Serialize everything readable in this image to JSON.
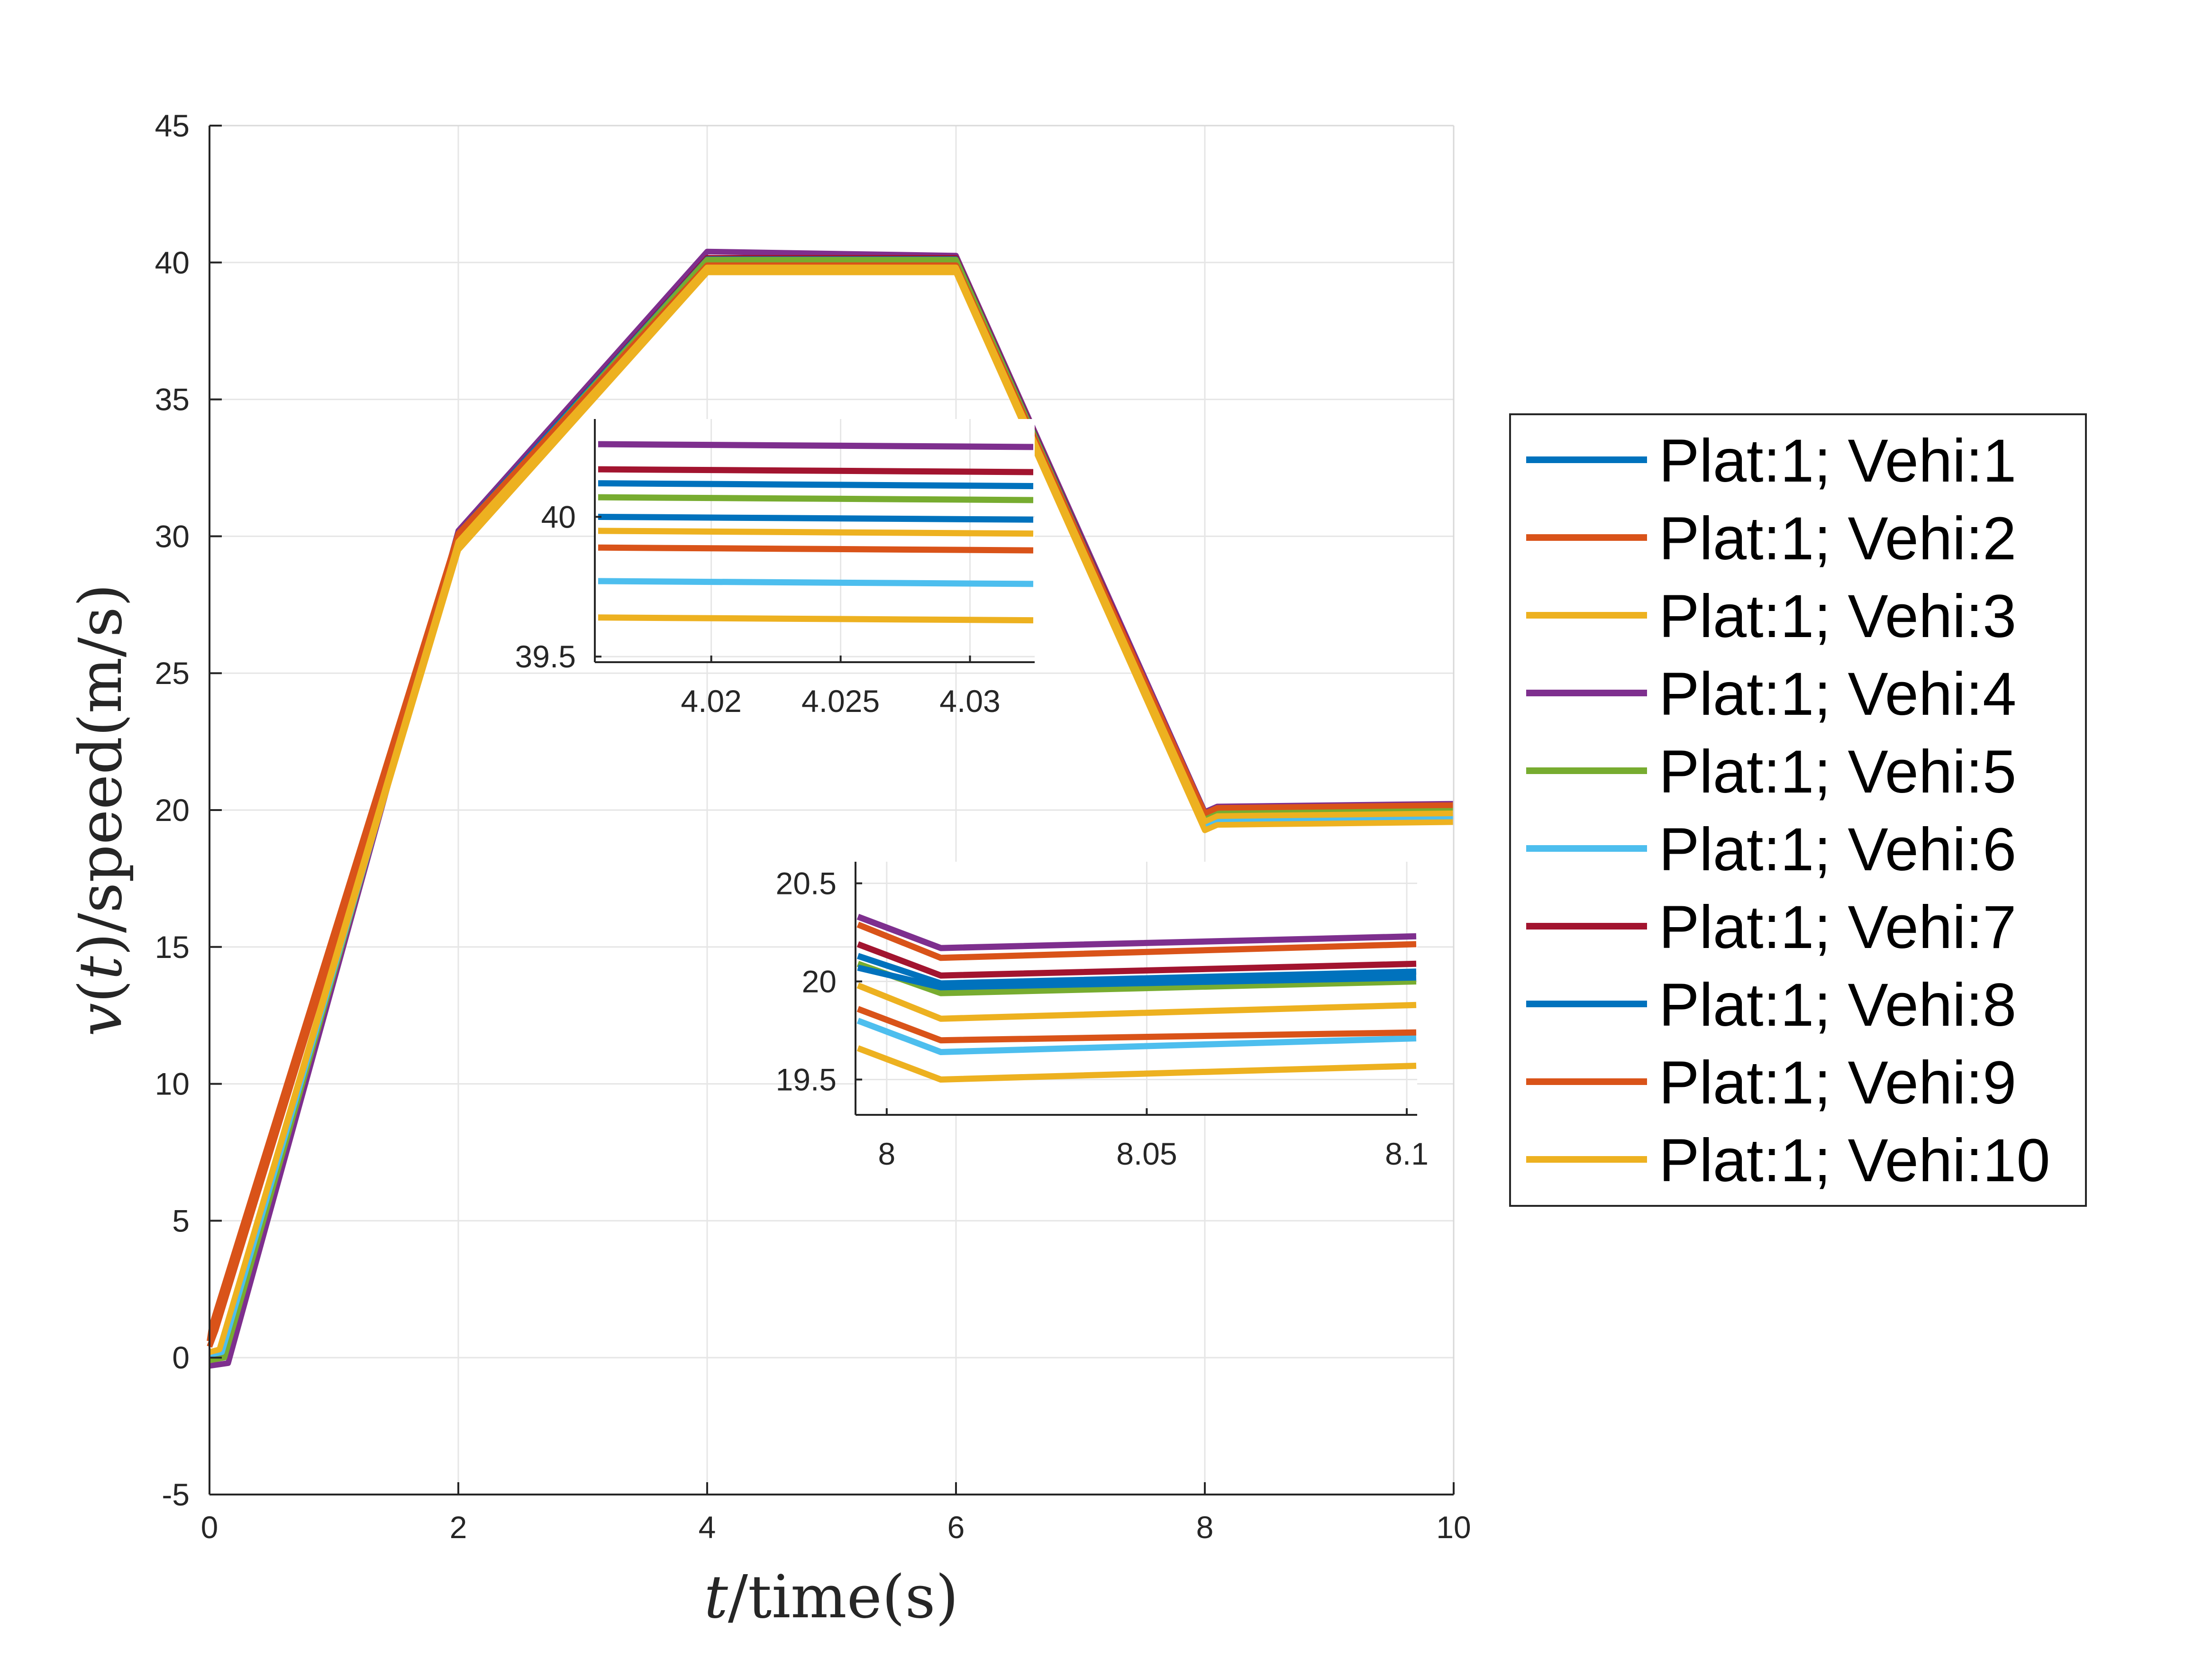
{
  "chart_data": {
    "type": "line",
    "xlabel_italic": "t",
    "xlabel_rest": "/time(s)",
    "ylabel_italic_v": "v",
    "ylabel_paren_open": "(",
    "ylabel_italic_t": "t",
    "ylabel_rest": ")/speed(m/s)",
    "xlim": [
      0,
      10
    ],
    "ylim": [
      -5,
      45
    ],
    "grid": true,
    "legend_position": "outside-right",
    "x_ticks": [
      "0",
      "2",
      "4",
      "6",
      "8",
      "10"
    ],
    "y_ticks": [
      "-5",
      "0",
      "5",
      "10",
      "15",
      "20",
      "25",
      "30",
      "35",
      "40",
      "45"
    ],
    "series": [
      {
        "name": "Plat:1; Vehi:1",
        "color": "#0072BD",
        "start_v": 0.0,
        "t_bend": 0.1,
        "v2": 30.0,
        "v_cruise1": 39.95,
        "v_cruise2": 20.05
      },
      {
        "name": "Plat:1; Vehi:2",
        "color": "#D95319",
        "start_v": 0.6,
        "t_bend": 0.02,
        "v2": 30.1,
        "v_cruise1": 39.9,
        "v_cruise2": 20.18
      },
      {
        "name": "Plat:1; Vehi:3",
        "color": "#EDB120",
        "start_v": 0.2,
        "t_bend": 0.08,
        "v2": 29.8,
        "v_cruise1": 39.82,
        "v_cruise2": 19.88
      },
      {
        "name": "Plat:1; Vehi:4",
        "color": "#7E2F8E",
        "start_v": -0.3,
        "t_bend": 0.15,
        "v2": 30.2,
        "v_cruise1": 40.25,
        "v_cruise2": 20.23
      },
      {
        "name": "Plat:1; Vehi:5",
        "color": "#77AC30",
        "start_v": -0.1,
        "t_bend": 0.12,
        "v2": 30.0,
        "v_cruise1": 40.1,
        "v_cruise2": 20.0
      },
      {
        "name": "Plat:1; Vehi:6",
        "color": "#4DBEEE",
        "start_v": 0.1,
        "t_bend": 0.1,
        "v2": 29.7,
        "v_cruise1": 39.78,
        "v_cruise2": 19.7
      },
      {
        "name": "Plat:1; Vehi:7",
        "color": "#A2142F",
        "start_v": 0.0,
        "t_bend": 0.11,
        "v2": 30.1,
        "v_cruise1": 40.17,
        "v_cruise2": 20.1
      },
      {
        "name": "Plat:1; Vehi:8",
        "color": "#0072BD",
        "start_v": 0.0,
        "t_bend": 0.1,
        "v2": 30.1,
        "v_cruise1": 40.12,
        "v_cruise2": 20.05
      },
      {
        "name": "Plat:1; Vehi:9",
        "color": "#D95319",
        "start_v": 0.4,
        "t_bend": 0.05,
        "v2": 29.9,
        "v_cruise1": 39.9,
        "v_cruise2": 19.74
      },
      {
        "name": "Plat:1; Vehi:10",
        "color": "#EDB120",
        "start_v": 0.2,
        "t_bend": 0.08,
        "v2": 29.5,
        "v_cruise1": 39.64,
        "v_cruise2": 19.56
      }
    ],
    "inset_1": {
      "xlim": [
        4.0155,
        4.0325
      ],
      "ylim": [
        39.48,
        40.35
      ],
      "x_ticks": [
        "4.02",
        "4.025",
        "4.03"
      ],
      "y_ticks": [
        "39.5",
        "40"
      ],
      "lines": [
        {
          "color": "#7E2F8E",
          "y": [
            40.26,
            40.25
          ]
        },
        {
          "color": "#A2142F",
          "y": [
            40.17,
            40.16
          ]
        },
        {
          "color": "#0072BD",
          "y": [
            40.12,
            40.11
          ]
        },
        {
          "color": "#77AC30",
          "y": [
            40.07,
            40.06
          ]
        },
        {
          "color": "#0072BD",
          "y": [
            40.0,
            39.99
          ]
        },
        {
          "color": "#EDB120",
          "y": [
            39.95,
            39.94
          ]
        },
        {
          "color": "#D95319",
          "y": [
            39.89,
            39.88
          ]
        },
        {
          "color": "#4DBEEE",
          "y": [
            39.77,
            39.76
          ]
        },
        {
          "color": "#EDB120",
          "y": [
            39.64,
            39.63
          ]
        }
      ]
    },
    "inset_2": {
      "xlim": [
        7.994,
        8.102
      ],
      "ylim": [
        19.32,
        20.61
      ],
      "x_ticks": [
        "8",
        "8.05",
        "8.1"
      ],
      "y_ticks": [
        "19.5",
        "20",
        "20.5"
      ],
      "lines": [
        {
          "color": "#7E2F8E",
          "y": [
            20.33,
            20.17,
            20.23
          ]
        },
        {
          "color": "#D95319",
          "y": [
            20.29,
            20.12,
            20.19
          ]
        },
        {
          "color": "#A2142F",
          "y": [
            20.19,
            20.03,
            20.09
          ]
        },
        {
          "color": "#0072BD",
          "y": [
            20.13,
            19.99,
            20.05
          ]
        },
        {
          "color": "#0072BD",
          "y": [
            20.07,
            19.97,
            20.02
          ]
        },
        {
          "color": "#77AC30",
          "y": [
            20.09,
            19.94,
            20.0
          ]
        },
        {
          "color": "#EDB120",
          "y": [
            19.98,
            19.81,
            19.88
          ]
        },
        {
          "color": "#D95319",
          "y": [
            19.86,
            19.7,
            19.74
          ]
        },
        {
          "color": "#4DBEEE",
          "y": [
            19.8,
            19.64,
            19.71
          ]
        },
        {
          "color": "#EDB120",
          "y": [
            19.66,
            19.5,
            19.57
          ]
        }
      ]
    }
  }
}
